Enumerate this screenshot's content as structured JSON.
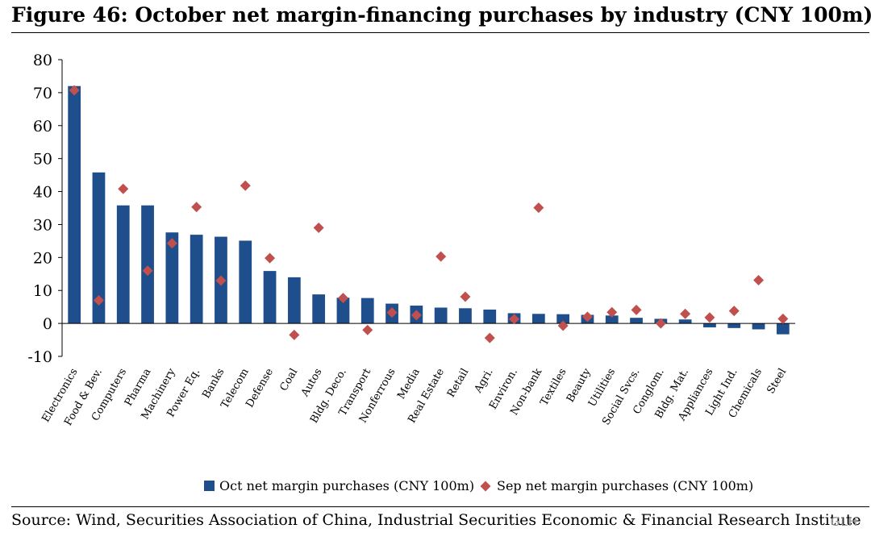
{
  "figure": {
    "title": "Figure 46: October net margin-financing purchases by industry (CNY 100m)",
    "source": "Source: Wind, Securities Association of China, Industrial Securities Economic & Financial Research Institute",
    "watermark": "GLH"
  },
  "chart_data": {
    "type": "bar",
    "categories": [
      "Electronics",
      "Food & Bev.",
      "Computers",
      "Pharma",
      "Machinery",
      "Power Eq.",
      "Banks",
      "Telecom",
      "Defense",
      "Coal",
      "Autos",
      "Bldg. Deco.",
      "Transport",
      "Nonferrous",
      "Media",
      "Real Estate",
      "Retail",
      "Agri.",
      "Environ.",
      "Non-bank",
      "Textiles",
      "Beauty",
      "Utilities",
      "Social Svcs.",
      "Conglom.",
      "Bldg. Mat.",
      "Appliances",
      "Light Ind.",
      "Chemicals",
      "Steel"
    ],
    "series": [
      {
        "name": "Oct net margin purchases (CNY 100m)",
        "kind": "bar",
        "color": "#1f4e8c",
        "values": [
          72.0,
          45.8,
          35.8,
          35.8,
          27.6,
          26.9,
          26.3,
          25.1,
          15.9,
          14.0,
          8.8,
          7.8,
          7.7,
          6.0,
          5.4,
          4.8,
          4.6,
          4.2,
          3.1,
          2.9,
          2.8,
          2.6,
          2.4,
          1.7,
          1.4,
          1.2,
          -1.2,
          -1.4,
          -1.8,
          -3.3
        ]
      },
      {
        "name": "Sep net margin purchases (CNY 100m)",
        "kind": "marker",
        "color": "#c0504d",
        "values": [
          70.7,
          7.0,
          40.8,
          16.0,
          24.3,
          35.3,
          13.0,
          41.8,
          19.8,
          -3.5,
          29.0,
          7.7,
          -2.0,
          3.3,
          2.5,
          20.3,
          8.1,
          -4.4,
          1.3,
          35.1,
          -0.7,
          2.0,
          3.4,
          4.1,
          0.0,
          2.9,
          1.8,
          3.8,
          13.1,
          1.4
        ]
      }
    ],
    "ylim": [
      -10,
      80
    ],
    "yticks": [
      -10,
      0,
      10,
      20,
      30,
      40,
      50,
      60,
      70,
      80
    ],
    "grid": false,
    "legend": "bottom-center"
  }
}
